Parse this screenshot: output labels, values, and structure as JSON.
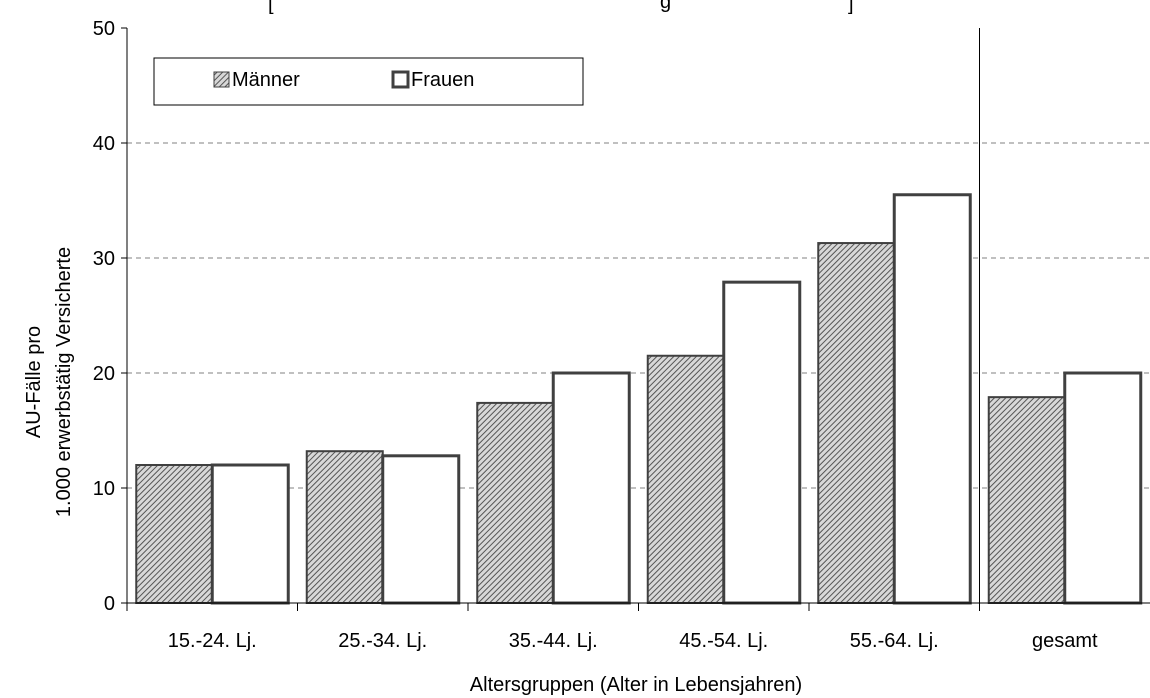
{
  "chart_data": {
    "type": "bar",
    "title_fragment": "[",
    "title_fragment_2": "g",
    "title_fragment_3": "]",
    "xlabel": "Altersgruppen (Alter in Lebensjahren)",
    "ylabel_line1": "AU-Fälle pro",
    "ylabel_line2": "1.000 erwerbstätig Versicherte",
    "ylim": [
      0,
      50
    ],
    "yticks": [
      0,
      10,
      20,
      30,
      40,
      50
    ],
    "grid": "horizontal-dashed",
    "legend_position": "top-left",
    "categories": [
      "15.-24. Lj.",
      "25.-34. Lj.",
      "35.-44. Lj.",
      "45.-54. Lj.",
      "55.-64. Lj.",
      "gesamt"
    ],
    "series": [
      {
        "name": "Männer",
        "values": [
          12.0,
          13.2,
          17.4,
          21.5,
          31.3,
          17.9
        ],
        "style": "hatched",
        "color": "#808080"
      },
      {
        "name": "Frauen",
        "values": [
          12.0,
          12.8,
          20.0,
          27.9,
          35.5,
          20.0
        ],
        "style": "outline",
        "color": "#ffffff"
      }
    ],
    "stroke_color": "#404040"
  }
}
